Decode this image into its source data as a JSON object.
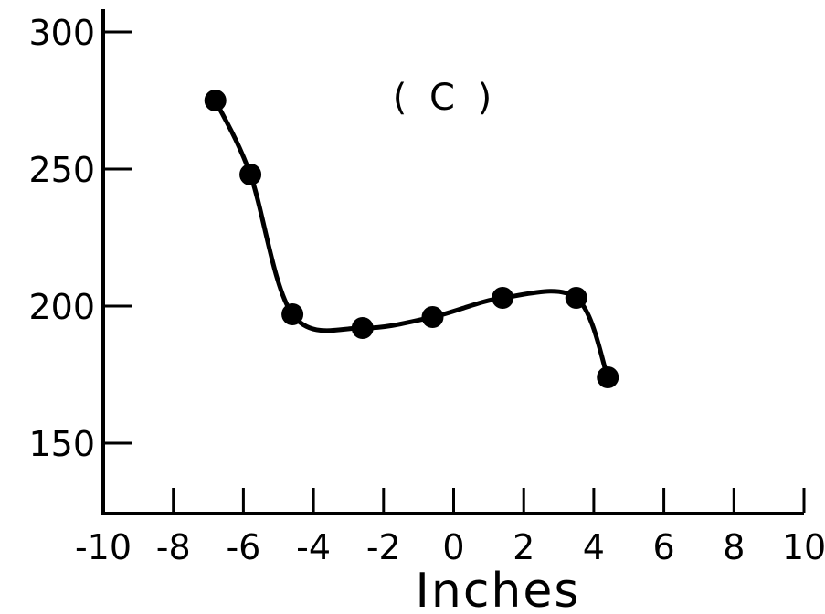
{
  "chart_data": {
    "type": "line",
    "panel_label": "( C )",
    "xlabel": "Inches",
    "ylabel": "",
    "xlim": [
      -10,
      10
    ],
    "ylim": [
      130,
      300
    ],
    "x_ticks": [
      -10,
      -8,
      -6,
      -4,
      -2,
      0,
      2,
      4,
      6,
      8,
      10
    ],
    "x_tick_labels": [
      "-10",
      "-8",
      "-6",
      "-4",
      "-2",
      "0",
      "2",
      "4",
      "6",
      "8",
      "10"
    ],
    "y_ticks": [
      150,
      200,
      250,
      300
    ],
    "y_tick_labels": [
      "150",
      "200",
      "250",
      "300"
    ],
    "grid": false,
    "series": [
      {
        "x": [
          -6.8,
          -5.8,
          -4.6,
          -2.6,
          -0.6,
          1.4,
          3.5,
          4.4
        ],
        "y": [
          275,
          248,
          197,
          192,
          196,
          203,
          203,
          174
        ]
      }
    ]
  }
}
